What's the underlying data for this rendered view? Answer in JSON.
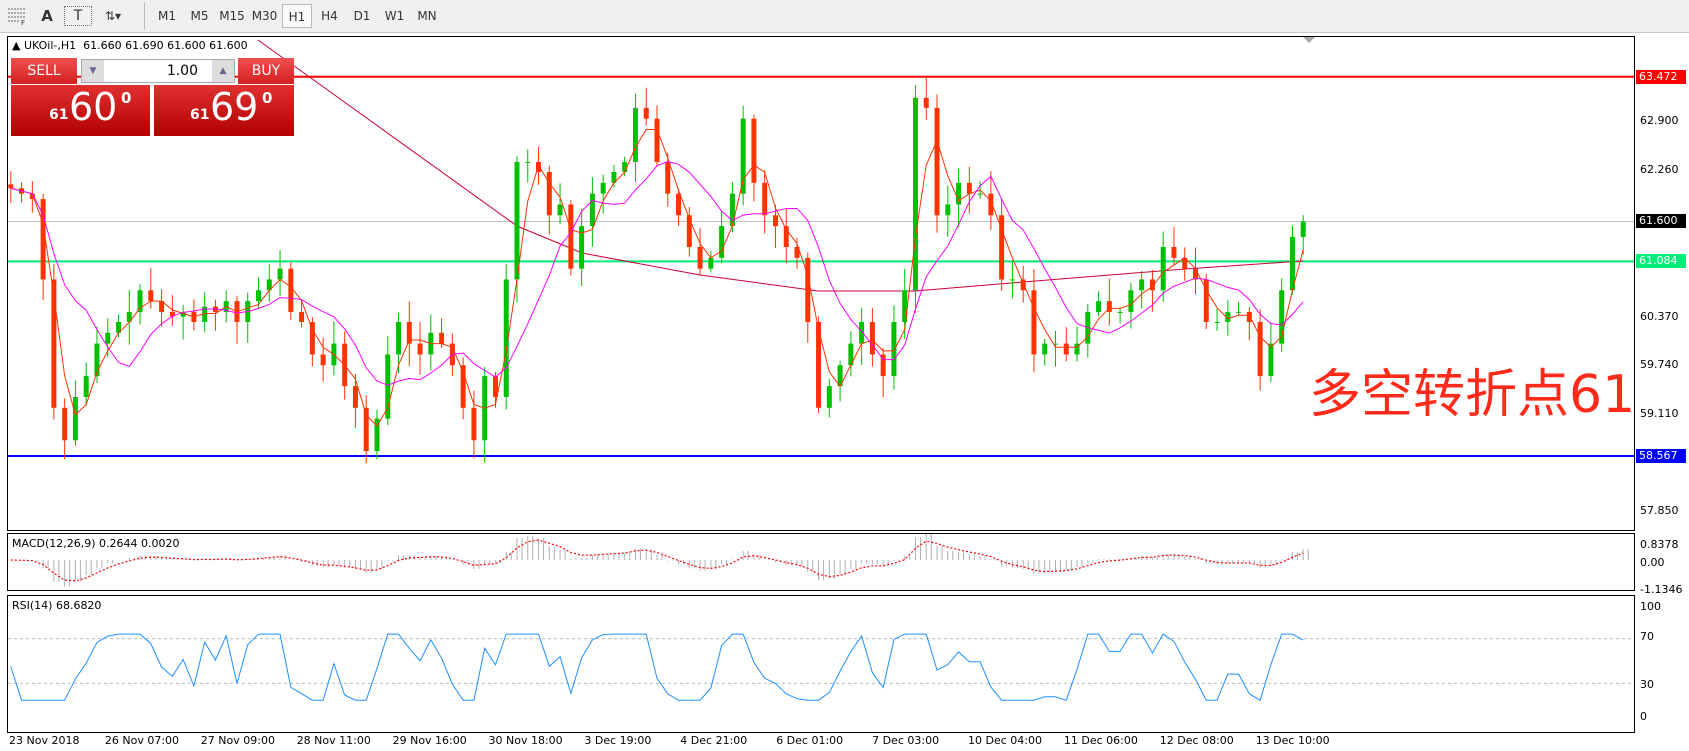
{
  "toolbar": {
    "tools": [
      {
        "icon": "fibonacci-grid-icon"
      },
      {
        "icon": "text-icon",
        "glyph": "A"
      },
      {
        "icon": "text-label-icon",
        "glyph": "T"
      },
      {
        "icon": "arrows-dropdown-icon"
      }
    ],
    "timeframes": [
      "M1",
      "M5",
      "M15",
      "M30",
      "H1",
      "H4",
      "D1",
      "W1",
      "MN"
    ],
    "active_timeframe": "H1"
  },
  "chart": {
    "header": "UKOil-,H1  61.660 61.690 61.600 61.600",
    "trade_panel": {
      "sell_label": "SELL",
      "buy_label": "BUY",
      "lot_value": "1.00",
      "sell_big": "61",
      "sell_main": "60",
      "sell_sup": "0",
      "buy_big": "61",
      "buy_main": "69",
      "buy_sup": "0"
    },
    "annotation": "多空转折点61",
    "price_axis": [
      "62.900",
      "62.260",
      "60.370",
      "59.740",
      "59.110",
      "57.850"
    ],
    "levels": [
      {
        "name": "resistance",
        "value": "63.472",
        "color": "#ff0000"
      },
      {
        "name": "current",
        "value": "61.600",
        "color": "#000000"
      },
      {
        "name": "pivot",
        "value": "61.084",
        "color": "#00ee77"
      },
      {
        "name": "support",
        "value": "58.567",
        "color": "#0000ff"
      }
    ],
    "time_axis": [
      "23 Nov 2018",
      "26 Nov 07:00",
      "27 Nov 09:00",
      "28 Nov 11:00",
      "29 Nov 16:00",
      "30 Nov 18:00",
      "3 Dec 19:00",
      "4 Dec 21:00",
      "6 Dec 01:00",
      "7 Dec 03:00",
      "10 Dec 04:00",
      "11 Dec 06:00",
      "12 Dec 08:00",
      "13 Dec 10:00"
    ]
  },
  "macd": {
    "title": "MACD(12,26,9) 0.2644 0.0020",
    "axis": [
      "0.8378",
      "0.00",
      "-1.1346"
    ]
  },
  "rsi": {
    "title": "RSI(14) 68.6820",
    "axis": [
      "100",
      "70",
      "30",
      "0"
    ]
  },
  "colors": {
    "bull": "#00c000",
    "bear": "#ff3300",
    "ma_fast": "#ff3300",
    "ma_slow": "#ff00ff",
    "ma_long": "#cc0033",
    "rsi": "#1e90ff",
    "macd_signal": "#ff0000"
  },
  "chart_data": {
    "type": "candlestick",
    "symbol": "UKOil-",
    "timeframe": "H1",
    "closes": [
      62.03,
      61.96,
      61.89,
      60.85,
      59.19,
      58.77,
      59.33,
      59.6,
      60.02,
      60.16,
      60.3,
      60.43,
      60.71,
      60.57,
      60.43,
      60.37,
      60.43,
      60.3,
      60.5,
      60.43,
      60.57,
      60.3,
      60.57,
      60.71,
      60.85,
      60.99,
      60.43,
      60.3,
      59.88,
      59.74,
      60.02,
      59.47,
      59.19,
      58.63,
      59.05,
      59.88,
      60.3,
      60.02,
      59.88,
      60.16,
      60.02,
      59.74,
      59.19,
      58.77,
      59.6,
      59.33,
      60.85,
      62.37,
      62.37,
      62.24,
      61.68,
      61.82,
      60.99,
      61.54,
      61.96,
      62.1,
      62.24,
      62.37,
      63.07,
      62.93,
      62.37,
      61.96,
      61.68,
      61.27,
      60.99,
      61.13,
      61.54,
      61.96,
      62.93,
      62.1,
      61.68,
      61.54,
      61.27,
      61.13,
      60.3,
      59.19,
      59.47,
      59.74,
      60.02,
      60.3,
      59.88,
      59.6,
      60.3,
      60.71,
      63.2,
      63.07,
      61.68,
      61.82,
      62.1,
      61.96,
      61.96,
      61.68,
      60.85,
      60.85,
      60.71,
      59.88,
      60.02,
      60.02,
      59.88,
      60.02,
      60.43,
      60.57,
      60.43,
      60.43,
      60.71,
      60.85,
      60.71,
      61.27,
      61.13,
      60.99,
      60.85,
      60.3,
      60.3,
      60.43,
      60.43,
      60.3,
      59.6,
      60.02,
      60.71,
      61.4,
      61.6
    ],
    "price_range": [
      57.6,
      63.75
    ]
  }
}
